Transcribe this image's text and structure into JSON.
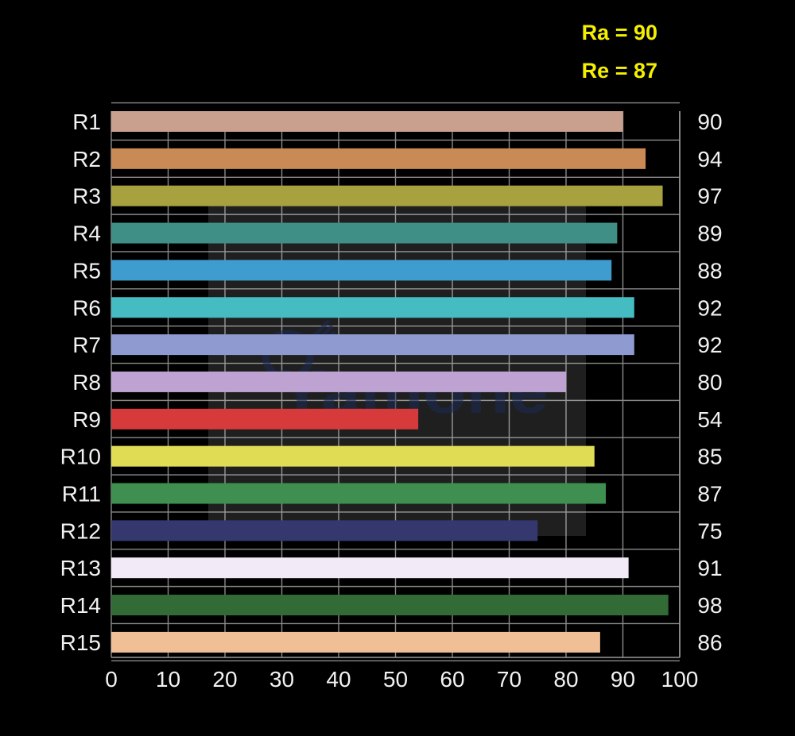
{
  "metrics": {
    "ra": "Ra = 90",
    "re": "Re = 87"
  },
  "watermark": {
    "text": "Yamone"
  },
  "chart_data": {
    "type": "bar",
    "orientation": "horizontal",
    "categories": [
      "R1",
      "R2",
      "R3",
      "R4",
      "R5",
      "R6",
      "R7",
      "R8",
      "R9",
      "R10",
      "R11",
      "R12",
      "R13",
      "R14",
      "R15"
    ],
    "values": [
      90,
      94,
      97,
      89,
      88,
      92,
      92,
      80,
      54,
      85,
      87,
      75,
      91,
      98,
      86
    ],
    "value_labels": [
      "90",
      "94",
      "97",
      "89",
      "88",
      "92",
      "92",
      "80",
      "54",
      "85",
      "87",
      "75",
      "91",
      "98",
      "86"
    ],
    "colors": [
      "#c9a08d",
      "#c98a55",
      "#a8a13f",
      "#3f8f86",
      "#3f9ccf",
      "#44bcc2",
      "#8f9ad0",
      "#bda2d2",
      "#d63a3a",
      "#e0dd55",
      "#3f8f50",
      "#34386e",
      "#f3eaf7",
      "#336b36",
      "#f0bf95"
    ],
    "xlim": [
      0,
      100
    ],
    "ticks": [
      "0",
      "10",
      "20",
      "30",
      "40",
      "50",
      "60",
      "70",
      "80",
      "90",
      "100"
    ],
    "grid": true,
    "title": "",
    "xlabel": "",
    "ylabel": ""
  }
}
